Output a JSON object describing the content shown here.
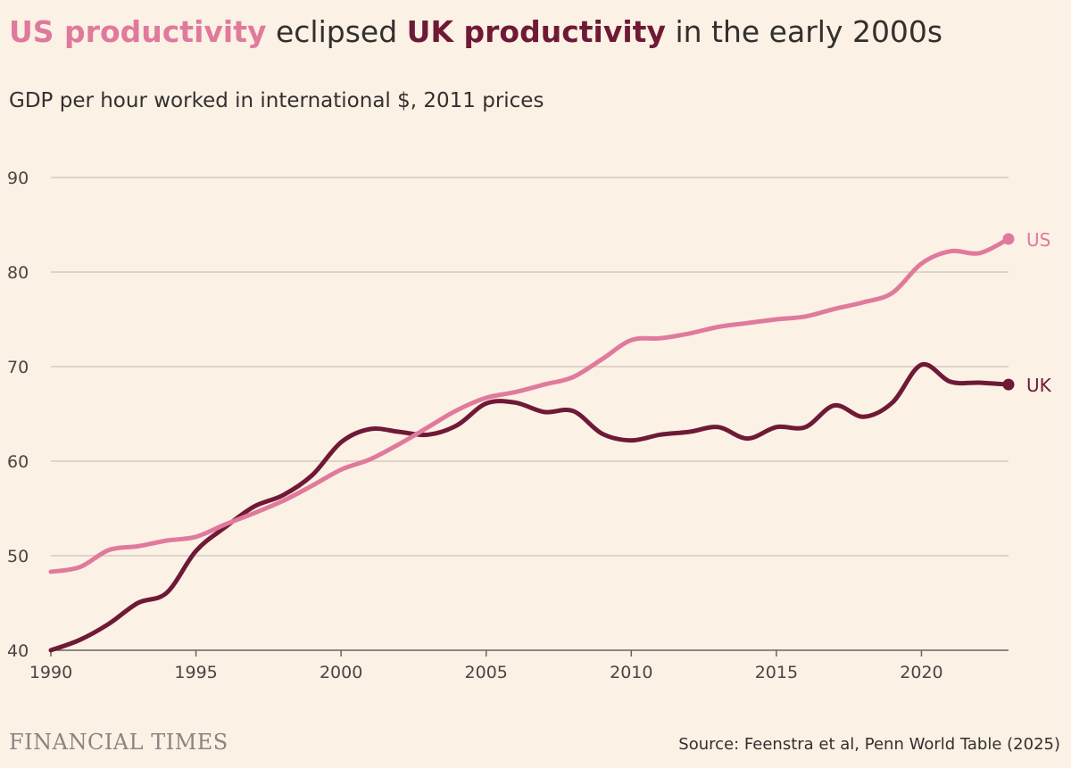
{
  "header": {
    "title_part1": "US productivity",
    "title_part2": " eclipsed ",
    "title_part3": "UK productivity",
    "title_part4": " in the early 2000s",
    "subtitle": "GDP per hour worked in international $, 2011 prices"
  },
  "footer": {
    "brand": "FINANCIAL TIMES",
    "source": "Source: Feenstra et al, Penn World Table (2025)"
  },
  "colors": {
    "background": "#fcf1e5",
    "us": "#e07a9c",
    "uk": "#6e1a36",
    "grid": "#d3cbc3",
    "axis": "#6b6460"
  },
  "chart_data": {
    "type": "line",
    "title": "US productivity eclipsed UK productivity in the early 2000s",
    "subtitle": "GDP per hour worked in international $, 2011 prices",
    "xlabel": "",
    "ylabel": "",
    "xlim": [
      1990,
      2023
    ],
    "ylim": [
      40,
      90
    ],
    "yticks": [
      90,
      80,
      70,
      60,
      50,
      40
    ],
    "xticks": [
      1990,
      1995,
      2000,
      2005,
      2010,
      2015,
      2020
    ],
    "grid": true,
    "x": [
      1990,
      1991,
      1992,
      1993,
      1994,
      1995,
      1996,
      1997,
      1998,
      1999,
      2000,
      2001,
      2002,
      2003,
      2004,
      2005,
      2006,
      2007,
      2008,
      2009,
      2010,
      2011,
      2012,
      2013,
      2014,
      2015,
      2016,
      2017,
      2018,
      2019,
      2020,
      2021,
      2022,
      2023
    ],
    "series": [
      {
        "name": "US",
        "values": [
          48.3,
          48.8,
          50.6,
          51.0,
          51.6,
          52.0,
          53.3,
          54.5,
          55.8,
          57.4,
          59.1,
          60.2,
          61.8,
          63.6,
          65.4,
          66.7,
          67.3,
          68.1,
          68.9,
          70.8,
          72.8,
          73.0,
          73.5,
          74.2,
          74.6,
          75.0,
          75.3,
          76.1,
          76.8,
          77.8,
          80.9,
          82.2,
          82.0,
          83.5
        ],
        "end_label": "US"
      },
      {
        "name": "UK",
        "values": [
          40.0,
          41.1,
          42.8,
          45.0,
          46.1,
          50.5,
          53.0,
          55.2,
          56.4,
          58.5,
          62.0,
          63.4,
          63.1,
          62.8,
          63.8,
          66.1,
          66.2,
          65.2,
          65.3,
          62.9,
          62.2,
          62.8,
          63.1,
          63.6,
          62.4,
          63.6,
          63.6,
          65.9,
          64.7,
          66.2,
          70.2,
          68.4,
          68.3,
          68.1
        ],
        "end_label": "UK"
      }
    ]
  }
}
